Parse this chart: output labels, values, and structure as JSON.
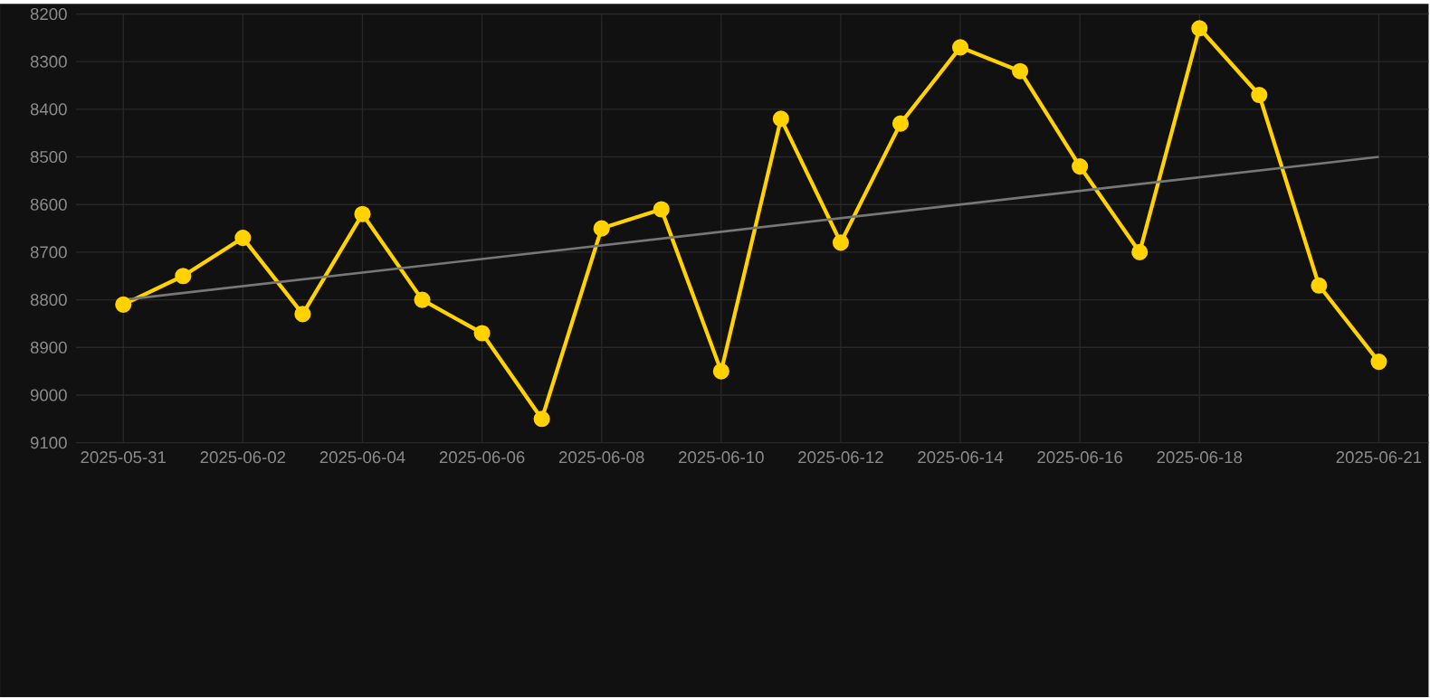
{
  "chart_data": {
    "type": "line",
    "x": [
      "2025-05-31",
      "2025-06-01",
      "2025-06-02",
      "2025-06-03",
      "2025-06-04",
      "2025-06-05",
      "2025-06-06",
      "2025-06-07",
      "2025-06-08",
      "2025-06-09",
      "2025-06-10",
      "2025-06-11",
      "2025-06-12",
      "2025-06-13",
      "2025-06-14",
      "2025-06-15",
      "2025-06-16",
      "2025-06-17",
      "2025-06-18",
      "2025-06-19",
      "2025-06-20",
      "2025-06-21"
    ],
    "series": [
      {
        "color": "#ffd200",
        "marker": "circle",
        "values": [
          8810,
          8750,
          8670,
          8830,
          8620,
          8800,
          8870,
          9050,
          8650,
          8610,
          8950,
          8420,
          8680,
          8430,
          8270,
          8320,
          8520,
          8700,
          8230,
          8370,
          8770,
          8930
        ]
      },
      {
        "color": "#777777",
        "marker": "none",
        "x": [
          "2025-05-31",
          "2025-06-21"
        ],
        "values": [
          8800,
          8500
        ]
      }
    ],
    "ylim": [
      9100,
      8200
    ],
    "yticks": [
      8200,
      8300,
      8400,
      8500,
      8600,
      8700,
      8800,
      8900,
      9000,
      9100
    ],
    "xlim": [
      "2025-05-30T05:00",
      "2025-06-21T20:00"
    ],
    "xticks": [
      {
        "value": "2025-05-31",
        "label": "2025-05-31"
      },
      {
        "value": "2025-06-02",
        "label": "2025-06-02"
      },
      {
        "value": "2025-06-04",
        "label": "2025-06-04"
      },
      {
        "value": "2025-06-06",
        "label": "2025-06-06"
      },
      {
        "value": "2025-06-08",
        "label": "2025-06-08"
      },
      {
        "value": "2025-06-10",
        "label": "2025-06-10"
      },
      {
        "value": "2025-06-12",
        "label": "2025-06-12"
      },
      {
        "value": "2025-06-14",
        "label": "2025-06-14"
      },
      {
        "value": "2025-06-16",
        "label": "2025-06-16"
      },
      {
        "value": "2025-06-18",
        "label": "2025-06-18"
      },
      {
        "value": "2025-06-21",
        "label": "2025-06-21"
      }
    ],
    "grid": true,
    "line_style": "solid"
  }
}
